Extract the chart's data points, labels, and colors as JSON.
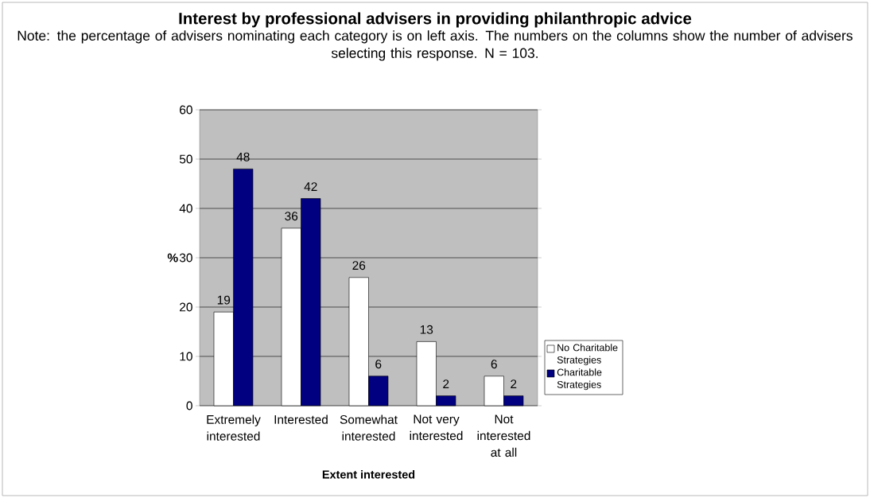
{
  "chart_data": {
    "type": "bar",
    "title": "Interest by professional advisers in providing philanthropic advice",
    "subtitle": "Note: the percentage of advisers nominating each category is on left axis. The numbers on the columns show the number of advisers selecting this response. N = 103.",
    "xlabel": "Extent interested",
    "ylabel": "%",
    "categories": [
      "Extremely interested",
      "Interested",
      "Somewhat interested",
      "Not very interested",
      "Not interested at all"
    ],
    "series": [
      {
        "name": "No Charitable Strategies",
        "color": "#ffffff",
        "values": [
          19,
          36,
          26,
          13,
          6
        ]
      },
      {
        "name": "Charitable Strategies",
        "color": "#000080",
        "values": [
          48,
          42,
          6,
          2,
          2
        ]
      }
    ],
    "ylim": [
      0,
      60
    ],
    "yticks": [
      0,
      10,
      20,
      30,
      40,
      50,
      60
    ],
    "grid": "y",
    "legend": "right",
    "data_labels": true
  }
}
